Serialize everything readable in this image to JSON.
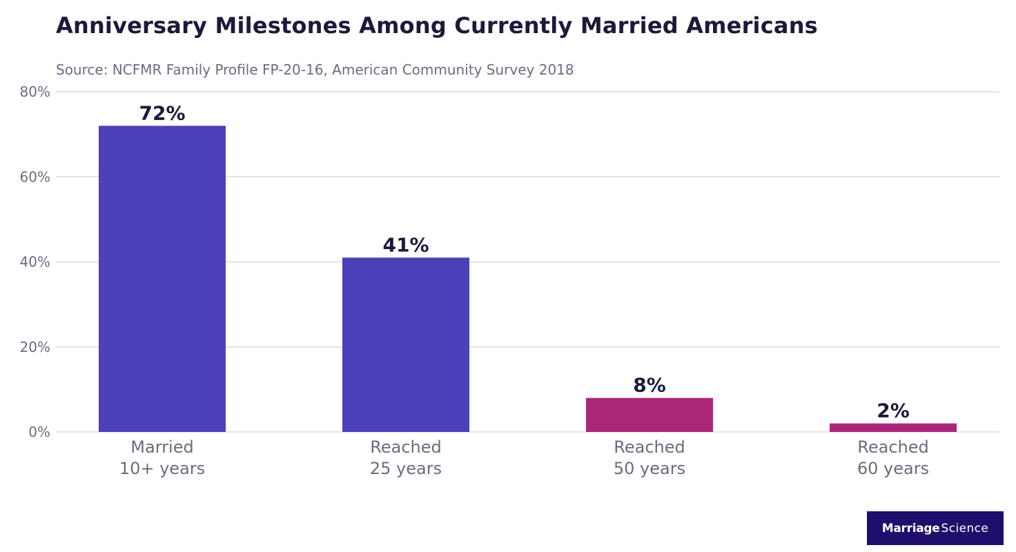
{
  "chart_data": {
    "type": "bar",
    "title": "Anniversary Milestones Among Currently Married Americans",
    "subtitle": "Source: NCFMR Family Profile FP-20-16, American Community Survey 2018",
    "categories": [
      [
        "Married",
        "10+ years"
      ],
      [
        "Reached",
        "25 years"
      ],
      [
        "Reached",
        "50 years"
      ],
      [
        "Reached",
        "60 years"
      ]
    ],
    "values": [
      72,
      41,
      8,
      2
    ],
    "value_labels": [
      "72%",
      "41%",
      "8%",
      "2%"
    ],
    "colors": [
      "#4b41b8",
      "#4b41b8",
      "#aa2678",
      "#aa2678"
    ],
    "ylim": [
      0,
      80
    ],
    "yticks": [
      0,
      20,
      40,
      60,
      80
    ],
    "ytick_labels": [
      "0%",
      "20%",
      "40%",
      "60%",
      "80%"
    ],
    "grid": true,
    "xlabel": "",
    "ylabel": ""
  },
  "brand": {
    "part1": "Marriage",
    "part2": "Science",
    "background": "#1f0e6b"
  }
}
